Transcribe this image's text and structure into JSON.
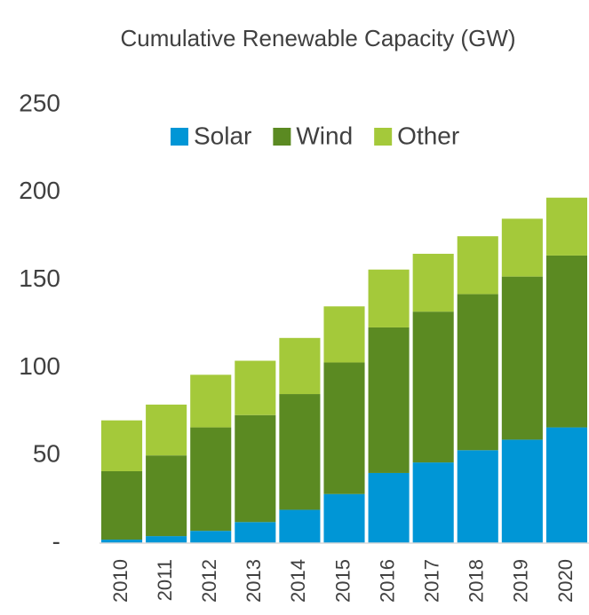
{
  "chart_data": {
    "type": "stacked_bar",
    "title": "Cumulative Renewable Capacity (GW)",
    "categories": [
      "2010",
      "2011",
      "2012",
      "2013",
      "2014",
      "2015",
      "2016",
      "2017",
      "2018",
      "2019",
      "2020"
    ],
    "series": [
      {
        "name": "Solar",
        "color": "#0096d6",
        "values": [
          2,
          4,
          7,
          12,
          19,
          28,
          40,
          46,
          53,
          59,
          66
        ]
      },
      {
        "name": "Wind",
        "color": "#5b8a22",
        "values": [
          39,
          46,
          59,
          61,
          66,
          75,
          83,
          86,
          89,
          93,
          98
        ]
      },
      {
        "name": "Other",
        "color": "#a4c93a",
        "values": [
          29,
          29,
          30,
          31,
          32,
          32,
          33,
          33,
          33,
          33,
          33
        ]
      }
    ],
    "ylim": [
      0,
      250
    ],
    "yticks": [
      {
        "value": 0,
        "label": "-"
      },
      50,
      100,
      150,
      200,
      250
    ],
    "grid": false,
    "legend": "top"
  }
}
